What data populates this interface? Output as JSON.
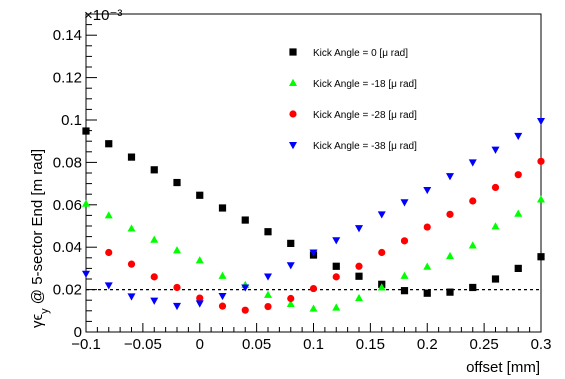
{
  "chart_data": {
    "type": "scatter",
    "xlabel": "offset [mm]",
    "ylabel": "γϵ_y @ 5-sector End [m rad]",
    "ylabel_main": "γϵ",
    "ylabel_sub": "y",
    "ylabel_rest": " @ 5-sector End [m rad]",
    "y_multiplier": "×10⁻³",
    "xlim": [
      -0.1,
      0.3
    ],
    "ylim": [
      0,
      0.15
    ],
    "x_ticks": [
      -0.1,
      -0.05,
      0,
      0.05,
      0.1,
      0.15,
      0.2,
      0.25,
      0.3
    ],
    "x_tick_labels": [
      "−0.1",
      "−0.05",
      "0",
      "0.05",
      "0.1",
      "0.15",
      "0.2",
      "0.25",
      "0.3"
    ],
    "y_ticks": [
      0,
      0.02,
      0.04,
      0.06,
      0.08,
      0.1,
      0.12,
      0.14
    ],
    "y_tick_labels": [
      "0",
      "0.02",
      "0.04",
      "0.06",
      "0.08",
      "0.1",
      "0.12",
      "0.14"
    ],
    "reference_line": {
      "y": 0.02,
      "style": "dashed"
    },
    "legend_position": "top-right",
    "series": [
      {
        "name": "Kick Angle = 0 [μ rad]",
        "marker": "square",
        "color": "#000000",
        "x": [
          -0.1,
          -0.08,
          -0.06,
          -0.04,
          -0.02,
          0,
          0.02,
          0.04,
          0.06,
          0.08,
          0.1,
          0.12,
          0.14,
          0.16,
          0.18,
          0.2,
          0.22,
          0.24,
          0.26,
          0.28,
          0.3
        ],
        "y": [
          0.0948,
          0.0888,
          0.0825,
          0.0765,
          0.0705,
          0.0645,
          0.0585,
          0.0528,
          0.0473,
          0.0418,
          0.0363,
          0.031,
          0.0263,
          0.0225,
          0.0195,
          0.0183,
          0.0188,
          0.021,
          0.025,
          0.03,
          0.0355
        ]
      },
      {
        "name": "Kick Angle = -18 [μ rad]",
        "marker": "triangle-up",
        "color": "#00ff00",
        "x": [
          -0.1,
          -0.08,
          -0.06,
          -0.04,
          -0.02,
          0,
          0.02,
          0.04,
          0.06,
          0.08,
          0.1,
          0.12,
          0.14,
          0.16,
          0.18,
          0.2,
          0.22,
          0.24,
          0.26,
          0.28,
          0.3
        ],
        "y": [
          0.0605,
          0.055,
          0.0488,
          0.0435,
          0.0385,
          0.0338,
          0.0265,
          0.0222,
          0.0175,
          0.0132,
          0.011,
          0.0115,
          0.016,
          0.021,
          0.0265,
          0.0308,
          0.0358,
          0.0408,
          0.0498,
          0.0558,
          0.0625
        ]
      },
      {
        "name": "Kick Angle = -28 [μ rad]",
        "marker": "circle",
        "color": "#ff0000",
        "x": [
          -0.08,
          -0.06,
          -0.04,
          -0.02,
          0,
          0.02,
          0.04,
          0.06,
          0.08,
          0.1,
          0.12,
          0.14,
          0.16,
          0.18,
          0.2,
          0.22,
          0.24,
          0.26,
          0.28,
          0.3
        ],
        "y": [
          0.0375,
          0.032,
          0.026,
          0.021,
          0.016,
          0.0122,
          0.0103,
          0.012,
          0.0158,
          0.0205,
          0.026,
          0.031,
          0.0375,
          0.043,
          0.0495,
          0.0555,
          0.0618,
          0.0682,
          0.0742,
          0.0805
        ]
      },
      {
        "name": "Kick Angle = -38 [μ rad]",
        "marker": "triangle-down",
        "color": "#0000ff",
        "x": [
          -0.1,
          -0.08,
          -0.06,
          -0.04,
          -0.02,
          0,
          0.02,
          0.04,
          0.06,
          0.08,
          0.1,
          0.12,
          0.14,
          0.16,
          0.18,
          0.2,
          0.22,
          0.24,
          0.26,
          0.28,
          0.3
        ],
        "y": [
          0.0275,
          0.022,
          0.0168,
          0.0148,
          0.0123,
          0.0135,
          0.017,
          0.021,
          0.0262,
          0.0315,
          0.0375,
          0.0433,
          0.049,
          0.0555,
          0.0612,
          0.067,
          0.0735,
          0.08,
          0.086,
          0.0925,
          0.0995
        ]
      }
    ]
  }
}
